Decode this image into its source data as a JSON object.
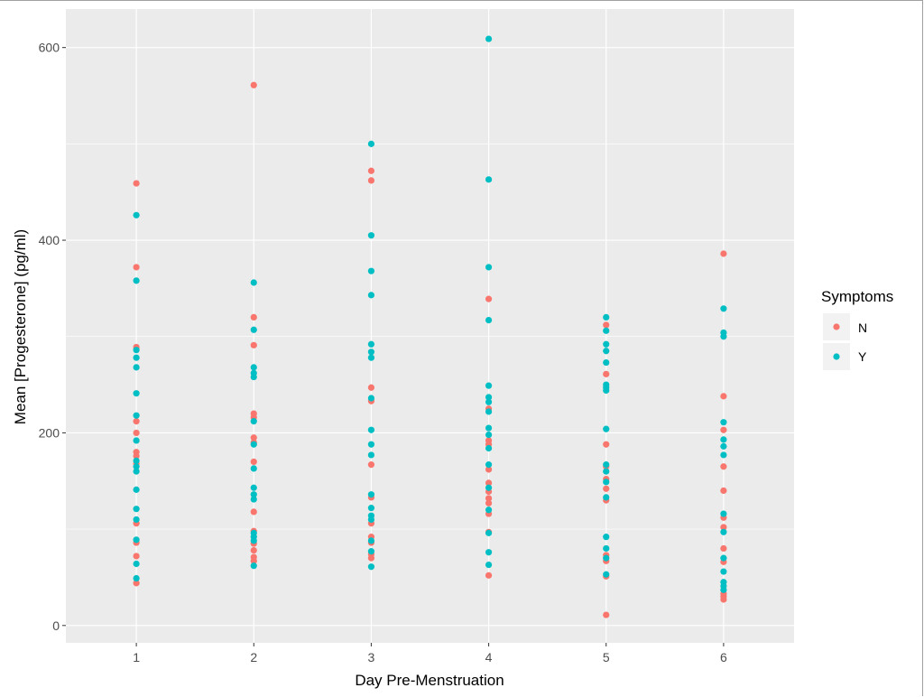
{
  "chart_data": {
    "type": "scatter",
    "title": "",
    "xlabel": "Day Pre-Menstruation",
    "ylabel": "Mean [Progesterone] (pg/ml)",
    "x_ticks": [
      "1",
      "2",
      "3",
      "4",
      "5",
      "6"
    ],
    "y_ticks": [
      "0",
      "200",
      "400",
      "600"
    ],
    "xlim": [
      0.4,
      6.6
    ],
    "ylim": [
      -18,
      640
    ],
    "grid": true,
    "legend": {
      "title": "Symptoms",
      "position": "right",
      "entries": [
        "N",
        "Y"
      ]
    },
    "colors": {
      "N": "#F8766D",
      "Y": "#00BFC4",
      "panel": "#EBEBEB",
      "grid": "#FFFFFF"
    },
    "series": [
      {
        "name": "N",
        "points": [
          [
            1,
            459
          ],
          [
            1,
            372
          ],
          [
            1,
            289
          ],
          [
            1,
            212
          ],
          [
            1,
            200
          ],
          [
            1,
            180
          ],
          [
            1,
            176
          ],
          [
            1,
            168
          ],
          [
            1,
            106
          ],
          [
            1,
            86
          ],
          [
            1,
            72
          ],
          [
            1,
            44
          ],
          [
            2,
            561
          ],
          [
            2,
            320
          ],
          [
            2,
            291
          ],
          [
            2,
            220
          ],
          [
            2,
            216
          ],
          [
            2,
            195
          ],
          [
            2,
            190
          ],
          [
            2,
            170
          ],
          [
            2,
            118
          ],
          [
            2,
            98
          ],
          [
            2,
            85
          ],
          [
            2,
            78
          ],
          [
            2,
            71
          ],
          [
            2,
            67
          ],
          [
            3,
            472
          ],
          [
            3,
            462
          ],
          [
            3,
            247
          ],
          [
            3,
            233
          ],
          [
            3,
            167
          ],
          [
            3,
            133
          ],
          [
            3,
            106
          ],
          [
            3,
            92
          ],
          [
            3,
            86
          ],
          [
            3,
            74
          ],
          [
            3,
            70
          ],
          [
            4,
            339
          ],
          [
            4,
            225
          ],
          [
            4,
            192
          ],
          [
            4,
            188
          ],
          [
            4,
            162
          ],
          [
            4,
            148
          ],
          [
            4,
            139
          ],
          [
            4,
            132
          ],
          [
            4,
            127
          ],
          [
            4,
            116
          ],
          [
            4,
            97
          ],
          [
            4,
            52
          ],
          [
            5,
            312
          ],
          [
            5,
            261
          ],
          [
            5,
            188
          ],
          [
            5,
            165
          ],
          [
            5,
            152
          ],
          [
            5,
            142
          ],
          [
            5,
            130
          ],
          [
            5,
            73
          ],
          [
            5,
            67
          ],
          [
            5,
            51
          ],
          [
            5,
            11
          ],
          [
            6,
            386
          ],
          [
            6,
            238
          ],
          [
            6,
            203
          ],
          [
            6,
            165
          ],
          [
            6,
            140
          ],
          [
            6,
            112
          ],
          [
            6,
            102
          ],
          [
            6,
            80
          ],
          [
            6,
            66
          ],
          [
            6,
            33
          ],
          [
            6,
            30
          ],
          [
            6,
            27
          ]
        ]
      },
      {
        "name": "Y",
        "points": [
          [
            1,
            426
          ],
          [
            1,
            358
          ],
          [
            1,
            286
          ],
          [
            1,
            278
          ],
          [
            1,
            268
          ],
          [
            1,
            241
          ],
          [
            1,
            218
          ],
          [
            1,
            192
          ],
          [
            1,
            171
          ],
          [
            1,
            165
          ],
          [
            1,
            160
          ],
          [
            1,
            141
          ],
          [
            1,
            121
          ],
          [
            1,
            110
          ],
          [
            1,
            89
          ],
          [
            1,
            64
          ],
          [
            1,
            49
          ],
          [
            2,
            356
          ],
          [
            2,
            307
          ],
          [
            2,
            268
          ],
          [
            2,
            262
          ],
          [
            2,
            258
          ],
          [
            2,
            212
          ],
          [
            2,
            188
          ],
          [
            2,
            163
          ],
          [
            2,
            143
          ],
          [
            2,
            136
          ],
          [
            2,
            131
          ],
          [
            2,
            96
          ],
          [
            2,
            92
          ],
          [
            2,
            88
          ],
          [
            2,
            62
          ],
          [
            3,
            500
          ],
          [
            3,
            405
          ],
          [
            3,
            368
          ],
          [
            3,
            343
          ],
          [
            3,
            292
          ],
          [
            3,
            284
          ],
          [
            3,
            278
          ],
          [
            3,
            236
          ],
          [
            3,
            203
          ],
          [
            3,
            188
          ],
          [
            3,
            177
          ],
          [
            3,
            136
          ],
          [
            3,
            122
          ],
          [
            3,
            114
          ],
          [
            3,
            110
          ],
          [
            3,
            88
          ],
          [
            3,
            77
          ],
          [
            3,
            61
          ],
          [
            4,
            609
          ],
          [
            4,
            463
          ],
          [
            4,
            372
          ],
          [
            4,
            317
          ],
          [
            4,
            249
          ],
          [
            4,
            237
          ],
          [
            4,
            232
          ],
          [
            4,
            222
          ],
          [
            4,
            205
          ],
          [
            4,
            198
          ],
          [
            4,
            184
          ],
          [
            4,
            167
          ],
          [
            4,
            143
          ],
          [
            4,
            120
          ],
          [
            4,
            96
          ],
          [
            4,
            76
          ],
          [
            4,
            63
          ],
          [
            5,
            320
          ],
          [
            5,
            306
          ],
          [
            5,
            292
          ],
          [
            5,
            285
          ],
          [
            5,
            273
          ],
          [
            5,
            250
          ],
          [
            5,
            247
          ],
          [
            5,
            244
          ],
          [
            5,
            204
          ],
          [
            5,
            167
          ],
          [
            5,
            160
          ],
          [
            5,
            149
          ],
          [
            5,
            133
          ],
          [
            5,
            92
          ],
          [
            5,
            80
          ],
          [
            5,
            70
          ],
          [
            5,
            53
          ],
          [
            6,
            329
          ],
          [
            6,
            304
          ],
          [
            6,
            300
          ],
          [
            6,
            211
          ],
          [
            6,
            193
          ],
          [
            6,
            186
          ],
          [
            6,
            177
          ],
          [
            6,
            116
          ],
          [
            6,
            97
          ],
          [
            6,
            70
          ],
          [
            6,
            56
          ],
          [
            6,
            45
          ],
          [
            6,
            41
          ],
          [
            6,
            37
          ]
        ]
      }
    ]
  }
}
